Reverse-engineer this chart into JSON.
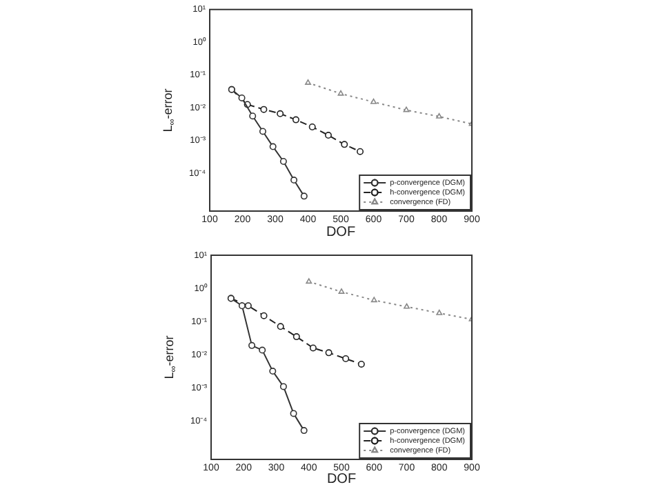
{
  "chart_data": [
    {
      "type": "line",
      "xlabel": "DOF",
      "ylabel": "L$_{∞}$-error",
      "log": "y",
      "legend": "bottom right",
      "xlim": [
        100,
        900
      ],
      "xticks": [
        100,
        200,
        300,
        400,
        500,
        600,
        700,
        800,
        900
      ],
      "ylim": [
        7e-06,
        10
      ],
      "yticks": [
        {
          "value": 10,
          "label": "10¹"
        },
        {
          "value": 1,
          "label": "10⁰"
        },
        {
          "value": 0.1,
          "label": "10⁻¹"
        },
        {
          "value": 0.01,
          "label": "10⁻²"
        },
        {
          "value": 0.001,
          "label": "10⁻³"
        },
        {
          "value": 0.0001,
          "label": "10⁻⁴"
        }
      ],
      "series": [
        {
          "name": "p-convergence (DGM)",
          "color": "#333333",
          "marker": "circle",
          "line_style": "solid",
          "x": [
            167,
            198,
            231,
            262,
            293,
            325,
            357,
            388
          ],
          "values": [
            0.036,
            0.02,
            0.0056,
            0.0019,
            0.00065,
            0.00023,
            6.2e-05,
            2e-05
          ]
        },
        {
          "name": "h-convergence (DGM)",
          "color": "#222222",
          "marker": "circle",
          "line_style": "dashed",
          "x": [
            167,
            215,
            265,
            315,
            363,
            413,
            462,
            511,
            559
          ],
          "values": [
            0.036,
            0.0126,
            0.0089,
            0.0066,
            0.0043,
            0.0026,
            0.00145,
            0.00076,
            0.00046
          ]
        },
        {
          "name": "convergence (FD)",
          "color": "#888888",
          "marker": "triangle",
          "line_style": "dotted",
          "x": [
            400,
            500,
            600,
            700,
            800,
            900
          ],
          "values": [
            0.058,
            0.027,
            0.015,
            0.0085,
            0.0054,
            0.0032
          ]
        }
      ]
    },
    {
      "type": "line",
      "xlabel": "DOF",
      "ylabel": "L$_{∞}$-error",
      "log": "y",
      "legend": "bottom right",
      "xlim": [
        100,
        900
      ],
      "xticks": [
        100,
        200,
        300,
        400,
        500,
        600,
        700,
        800,
        900
      ],
      "ylim": [
        7e-06,
        10
      ],
      "yticks": [
        {
          "value": 10,
          "label": "10¹"
        },
        {
          "value": 1,
          "label": "10⁰"
        },
        {
          "value": 0.1,
          "label": "10⁻¹"
        },
        {
          "value": 0.01,
          "label": "10⁻²"
        },
        {
          "value": 0.001,
          "label": "10⁻³"
        },
        {
          "value": 0.0001,
          "label": "10⁻⁴"
        }
      ],
      "series": [
        {
          "name": "p-convergence (DGM)",
          "color": "#333333",
          "marker": "circle",
          "line_style": "solid",
          "x": [
            161,
            195,
            225,
            257,
            289,
            322,
            353,
            385
          ],
          "values": [
            0.5,
            0.3,
            0.019,
            0.0138,
            0.0032,
            0.0011,
            0.00017,
            5.2e-05
          ]
        },
        {
          "name": "h-convergence (DGM)",
          "color": "#222222",
          "marker": "circle",
          "line_style": "dashed",
          "x": [
            161,
            214,
            262,
            313,
            362,
            413,
            461,
            513,
            561
          ],
          "values": [
            0.5,
            0.3,
            0.15,
            0.071,
            0.035,
            0.016,
            0.0115,
            0.0076,
            0.0052
          ]
        },
        {
          "name": "convergence (FD)",
          "color": "#888888",
          "marker": "triangle",
          "line_style": "dotted",
          "x": [
            400,
            500,
            600,
            700,
            800,
            900
          ],
          "values": [
            1.6,
            0.79,
            0.44,
            0.28,
            0.18,
            0.117
          ]
        }
      ]
    }
  ]
}
